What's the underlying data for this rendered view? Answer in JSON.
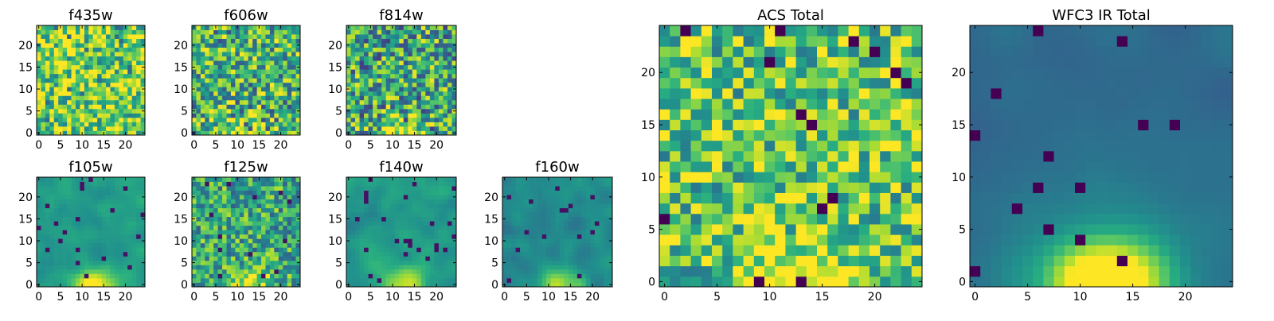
{
  "chart_data": [
    {
      "type": "heatmap",
      "title": "f435w",
      "x_ticks": [
        "0",
        "5",
        "10",
        "15",
        "20"
      ],
      "y_ticks": [
        "0",
        "5",
        "10",
        "15",
        "20"
      ],
      "xlim": [
        0,
        24
      ],
      "ylim": [
        0,
        24
      ],
      "grid_size": 25,
      "colormap": "viridis",
      "hot_spot": "none",
      "seed": 11,
      "vmin": 0.35,
      "mean": 0.78,
      "spread": 0.34
    },
    {
      "type": "heatmap",
      "title": "f606w",
      "x_ticks": [
        "0",
        "5",
        "10",
        "15",
        "20"
      ],
      "y_ticks": [
        "0",
        "5",
        "10",
        "15",
        "20"
      ],
      "xlim": [
        0,
        24
      ],
      "ylim": [
        0,
        24
      ],
      "grid_size": 25,
      "colormap": "viridis",
      "hot_spot": "bottom-center",
      "seed": 23,
      "vmin": 0.25,
      "mean": 0.66,
      "spread": 0.36
    },
    {
      "type": "heatmap",
      "title": "f814w",
      "x_ticks": [
        "0",
        "5",
        "10",
        "15",
        "20"
      ],
      "y_ticks": [
        "0",
        "5",
        "10",
        "15",
        "20"
      ],
      "xlim": [
        0,
        24
      ],
      "ylim": [
        0,
        24
      ],
      "grid_size": 25,
      "colormap": "viridis",
      "hot_spot": "bottom-center",
      "seed": 37,
      "vmin": 0.2,
      "mean": 0.6,
      "spread": 0.38
    },
    {
      "type": "heatmap",
      "title": "f105w",
      "x_ticks": [
        "0",
        "5",
        "10",
        "15",
        "20"
      ],
      "y_ticks": [
        "0",
        "5",
        "10",
        "15",
        "20"
      ],
      "xlim": [
        0,
        24
      ],
      "ylim": [
        0,
        24
      ],
      "grid_size": 25,
      "colormap": "viridis",
      "hot_spot": "bottom-center",
      "seed": 41,
      "vmin": 0.05,
      "mean": 0.55,
      "spread": 0.28
    },
    {
      "type": "heatmap",
      "title": "f125w",
      "x_ticks": [
        "0",
        "5",
        "10",
        "15",
        "20"
      ],
      "y_ticks": [
        "0",
        "5",
        "10",
        "15",
        "20"
      ],
      "xlim": [
        0,
        24
      ],
      "ylim": [
        0,
        24
      ],
      "grid_size": 25,
      "colormap": "viridis",
      "hot_spot": "bottom-center",
      "seed": 53,
      "vmin": 0.05,
      "mean": 0.6,
      "spread": 0.3
    },
    {
      "type": "heatmap",
      "title": "f140w",
      "x_ticks": [
        "0",
        "5",
        "10",
        "15",
        "20"
      ],
      "y_ticks": [
        "0",
        "5",
        "10",
        "15",
        "20"
      ],
      "xlim": [
        0,
        24
      ],
      "ylim": [
        0,
        24
      ],
      "grid_size": 25,
      "colormap": "viridis",
      "hot_spot": "bottom-center",
      "seed": 67,
      "vmin": 0.05,
      "mean": 0.55,
      "spread": 0.28
    },
    {
      "type": "heatmap",
      "title": "f160w",
      "x_ticks": [
        "0",
        "5",
        "10",
        "15",
        "20"
      ],
      "y_ticks": [
        "0",
        "5",
        "10",
        "15",
        "20"
      ],
      "xlim": [
        0,
        24
      ],
      "ylim": [
        0,
        24
      ],
      "grid_size": 25,
      "colormap": "viridis",
      "hot_spot": "bottom-center",
      "seed": 79,
      "vmin": 0.05,
      "mean": 0.48,
      "spread": 0.26
    },
    {
      "type": "heatmap",
      "title": "ACS Total",
      "x_ticks": [
        "0",
        "5",
        "10",
        "15",
        "20"
      ],
      "y_ticks": [
        "0",
        "5",
        "10",
        "15",
        "20"
      ],
      "xlim": [
        0,
        24
      ],
      "ylim": [
        0,
        24
      ],
      "grid_size": 25,
      "colormap": "viridis",
      "hot_spot": "bottom-center",
      "seed": 97,
      "vmin": 0.0,
      "mean": 0.72,
      "spread": 0.32
    },
    {
      "type": "heatmap",
      "title": "WFC3 IR Total",
      "x_ticks": [
        "0",
        "5",
        "10",
        "15",
        "20"
      ],
      "y_ticks": [
        "0",
        "5",
        "10",
        "15",
        "20"
      ],
      "xlim": [
        0,
        24
      ],
      "ylim": [
        0,
        24
      ],
      "grid_size": 25,
      "colormap": "viridis",
      "hot_spot": "bottom-center-strong",
      "seed": 113,
      "vmin": 0.0,
      "mean": 0.35,
      "spread": 0.12
    }
  ]
}
